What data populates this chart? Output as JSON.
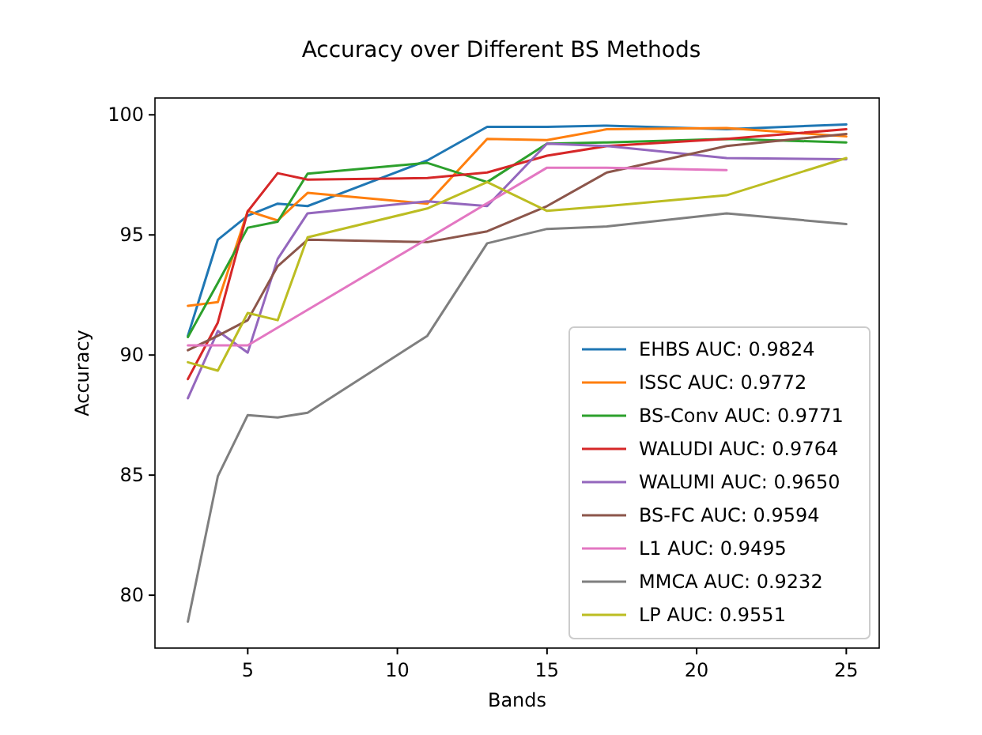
{
  "chart_data": {
    "type": "line",
    "title": "Accuracy over Different BS Methods",
    "xlabel": "Bands",
    "ylabel": "Accuracy",
    "xlim": [
      1.9,
      26.1
    ],
    "ylim": [
      77.8,
      100.7
    ],
    "xticks": [
      5,
      10,
      15,
      20,
      25
    ],
    "yticks": [
      80,
      85,
      90,
      95,
      100
    ],
    "legend": "bottom right",
    "grid": false,
    "marker": "none",
    "line_style": "solid",
    "series": [
      {
        "name": "EHBS AUC: 0.9824",
        "color": "#1f77b4",
        "x": [
          3,
          4,
          5,
          6,
          7,
          11,
          13,
          15,
          17,
          21,
          25
        ],
        "values": [
          90.8,
          94.8,
          95.8,
          96.3,
          96.2,
          98.1,
          99.5,
          99.5,
          99.55,
          99.4,
          99.6
        ]
      },
      {
        "name": "ISSC AUC: 0.9772",
        "color": "#ff7f0e",
        "x": [
          3,
          4,
          5,
          6,
          7,
          11,
          13,
          15,
          17,
          21,
          25
        ],
        "values": [
          92.05,
          92.2,
          96.0,
          95.6,
          96.75,
          96.3,
          99.0,
          98.95,
          99.4,
          99.45,
          99.1
        ]
      },
      {
        "name": "BS-Conv AUC: 0.9771",
        "color": "#2ca02c",
        "x": [
          3,
          4,
          5,
          6,
          7,
          11,
          13,
          15,
          17,
          21,
          25
        ],
        "values": [
          90.75,
          93.0,
          95.3,
          95.55,
          97.55,
          98.0,
          97.2,
          98.8,
          98.85,
          99.0,
          98.85
        ]
      },
      {
        "name": "WALUDI AUC: 0.9764",
        "color": "#d62728",
        "x": [
          3,
          4,
          5,
          6,
          7,
          11,
          13,
          15,
          17,
          21,
          25
        ],
        "values": [
          89.0,
          91.35,
          95.98,
          97.57,
          97.3,
          97.37,
          97.6,
          98.3,
          98.7,
          99.0,
          99.4
        ]
      },
      {
        "name": "WALUMI AUC: 0.9650",
        "color": "#9467bd",
        "x": [
          3,
          4,
          5,
          6,
          7,
          11,
          13,
          15,
          17,
          21,
          25
        ],
        "values": [
          88.2,
          91.0,
          90.1,
          94.0,
          95.9,
          96.4,
          96.2,
          98.8,
          98.7,
          98.2,
          98.15
        ]
      },
      {
        "name": "BS-FC AUC: 0.9594",
        "color": "#8c564b",
        "x": [
          3,
          4,
          5,
          6,
          7,
          11,
          13,
          15,
          17,
          21,
          25
        ],
        "values": [
          90.2,
          90.8,
          91.45,
          93.7,
          94.8,
          94.7,
          95.15,
          96.2,
          97.6,
          98.7,
          99.2
        ]
      },
      {
        "name": "L1 AUC: 0.9495",
        "color": "#e377c2",
        "x": [
          3,
          4,
          5,
          15,
          17,
          21
        ],
        "values": [
          90.4,
          90.4,
          90.4,
          97.8,
          97.8,
          97.7
        ]
      },
      {
        "name": "MMCA AUC: 0.9232",
        "color": "#7f7f7f",
        "x": [
          3,
          4,
          5,
          6,
          7,
          11,
          13,
          15,
          17,
          21,
          25
        ],
        "values": [
          78.9,
          84.95,
          87.5,
          87.4,
          87.6,
          90.8,
          94.65,
          95.25,
          95.35,
          95.9,
          95.45
        ]
      },
      {
        "name": "LP AUC: 0.9551",
        "color": "#bcbd22",
        "x": [
          3,
          4,
          5,
          6,
          7,
          11,
          13,
          15,
          17,
          21,
          25
        ],
        "values": [
          89.7,
          89.35,
          91.75,
          91.45,
          94.9,
          96.1,
          97.2,
          96.0,
          96.2,
          96.65,
          98.2
        ]
      }
    ]
  }
}
